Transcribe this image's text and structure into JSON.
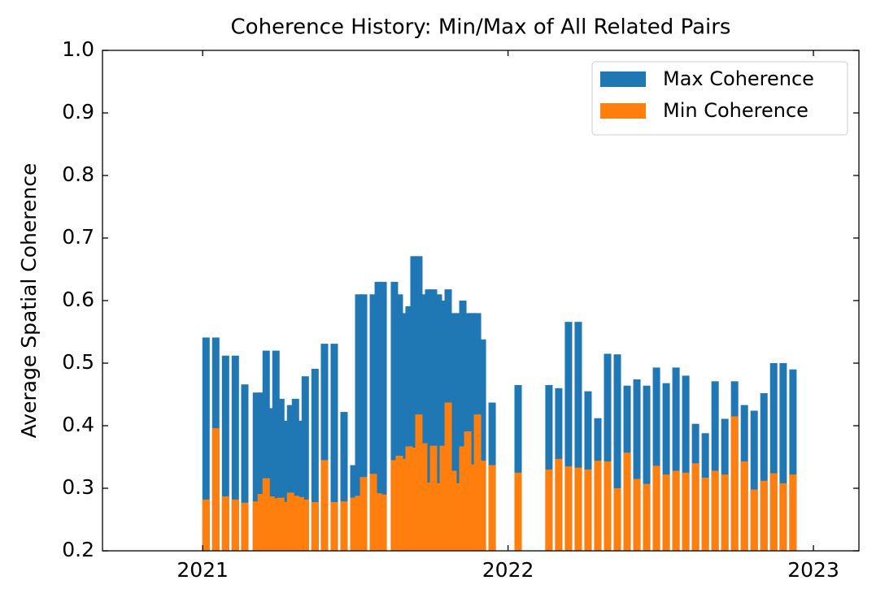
{
  "chart_data": {
    "type": "bar",
    "title": "Coherence History: Min/Max of All Related Pairs",
    "ylabel": "Average Spatial Coherence",
    "x": [
      2021.011,
      2021.043,
      2021.075,
      2021.107,
      2021.138,
      2021.176,
      2021.192,
      2021.208,
      2021.224,
      2021.24,
      2021.256,
      2021.272,
      2021.288,
      2021.304,
      2021.32,
      2021.336,
      2021.368,
      2021.399,
      2021.431,
      2021.463,
      2021.495,
      2021.511,
      2021.527,
      2021.559,
      2021.575,
      2021.591,
      2021.628,
      2021.644,
      2021.66,
      2021.676,
      2021.692,
      2021.708,
      2021.724,
      2021.74,
      2021.756,
      2021.772,
      2021.788,
      2021.804,
      2021.82,
      2021.836,
      2021.852,
      2021.868,
      2021.884,
      2021.9,
      2021.916,
      2021.948,
      2022.033,
      2022.134,
      2022.166,
      2022.198,
      2022.23,
      2022.262,
      2022.294,
      2022.326,
      2022.358,
      2022.39,
      2022.422,
      2022.454,
      2022.486,
      2022.518,
      2022.55,
      2022.582,
      2022.614,
      2022.646,
      2022.678,
      2022.71,
      2022.742,
      2022.774,
      2022.806,
      2022.838,
      2022.87,
      2022.901,
      2022.933
    ],
    "series": [
      {
        "name": "Max Coherence",
        "color": "#1f77b4",
        "values": [
          0.541,
          0.541,
          0.512,
          0.512,
          0.466,
          0.453,
          0.453,
          0.52,
          0.428,
          0.52,
          0.443,
          0.408,
          0.433,
          0.443,
          0.408,
          0.479,
          0.491,
          0.531,
          0.531,
          0.422,
          0.337,
          0.61,
          0.61,
          0.61,
          0.63,
          0.63,
          0.63,
          0.61,
          0.58,
          0.591,
          0.671,
          0.671,
          0.61,
          0.618,
          0.618,
          0.61,
          0.6,
          0.618,
          0.58,
          0.58,
          0.6,
          0.58,
          0.58,
          0.58,
          0.538,
          0.437,
          0.465,
          0.465,
          0.46,
          0.566,
          0.566,
          0.455,
          0.412,
          0.515,
          0.514,
          0.464,
          0.474,
          0.464,
          0.493,
          0.468,
          0.493,
          0.48,
          0.403,
          0.388,
          0.471,
          0.411,
          0.471,
          0.433,
          0.424,
          0.452,
          0.5,
          0.5,
          0.49
        ]
      },
      {
        "name": "Min Coherence",
        "color": "#ff7f0e",
        "values": [
          0.282,
          0.396,
          0.287,
          0.282,
          0.277,
          0.279,
          0.291,
          0.316,
          0.287,
          0.284,
          0.285,
          0.278,
          0.293,
          0.288,
          0.286,
          0.282,
          0.278,
          0.345,
          0.278,
          0.279,
          0.285,
          0.288,
          0.318,
          0.323,
          0.292,
          0.29,
          0.345,
          0.352,
          0.347,
          0.367,
          0.365,
          0.418,
          0.372,
          0.309,
          0.368,
          0.308,
          0.368,
          0.437,
          0.328,
          0.308,
          0.367,
          0.391,
          0.338,
          0.418,
          0.344,
          0.337,
          0.325,
          0.33,
          0.347,
          0.335,
          0.333,
          0.33,
          0.344,
          0.343,
          0.3,
          0.357,
          0.315,
          0.307,
          0.336,
          0.322,
          0.328,
          0.325,
          0.34,
          0.317,
          0.328,
          0.322,
          0.415,
          0.343,
          0.298,
          0.312,
          0.324,
          0.308,
          0.322
        ]
      }
    ],
    "xlim": [
      2020.672,
      2023.149
    ],
    "xticks": [
      2021,
      2022,
      2023
    ],
    "ylim": [
      0.2,
      1
    ],
    "yticks": [
      0.2,
      0.3,
      0.4,
      0.5,
      0.6,
      0.7,
      0.8,
      0.9,
      {
        "value": 1,
        "label": "1.0"
      }
    ],
    "legend": "upper right"
  }
}
